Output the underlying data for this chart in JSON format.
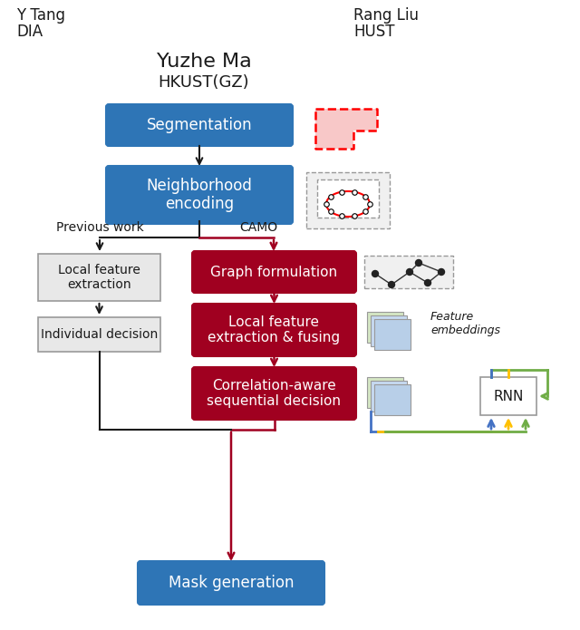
{
  "bg_color": "#ffffff",
  "blue_color": "#2E75B6",
  "red_color": "#A00020",
  "gray_color": "#E8E8E8",
  "gray_border": "#999999",
  "black": "#1a1a1a",
  "blue_arrow": "#4472C4",
  "yellow_arrow": "#FFC000",
  "green_arrow": "#70AD47",
  "author1_name": "Yuzhe Ma",
  "author1_inst": "HKUST(GZ)",
  "author2_name": "Y Tang",
  "author2_inst": "DIA",
  "author3_name": "Rang Liu",
  "author3_inst": "HUST",
  "box_seg": "Segmentation",
  "box_neigh": "Neighborhood\nencoding",
  "box_graph": "Graph formulation",
  "box_local_red": "Local feature\nextraction & fusing",
  "box_corr": "Correlation-aware\nsequential decision",
  "box_local_gray": "Local feature\nextraction",
  "box_indiv": "Individual decision",
  "box_mask": "Mask generation",
  "label_prev": "Previous work",
  "label_camo": "CAMO",
  "label_feat": "Feature\nembeddings",
  "label_rnn": "RNN"
}
